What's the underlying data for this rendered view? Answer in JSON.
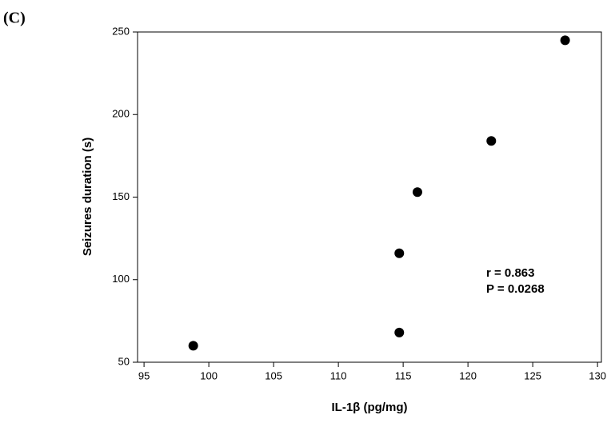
{
  "chart_data": {
    "type": "scatter",
    "panel_label": "(C)",
    "x_label": "IL-1β (pg/mg)",
    "y_label": "Seizures duration (s)",
    "x": [
      98.8,
      114.7,
      114.7,
      116.1,
      121.8,
      127.5
    ],
    "values": [
      60,
      68,
      116,
      153,
      184,
      245
    ],
    "color": "#000000",
    "xlim": [
      94.5,
      130.3
    ],
    "xticks": [
      95,
      100,
      105,
      110,
      115,
      120,
      125,
      130
    ],
    "ylim": [
      50,
      250
    ],
    "yticks": [
      50,
      100,
      150,
      200,
      250
    ],
    "annotations": [
      "r = 0.863",
      "P = 0.0268"
    ]
  }
}
